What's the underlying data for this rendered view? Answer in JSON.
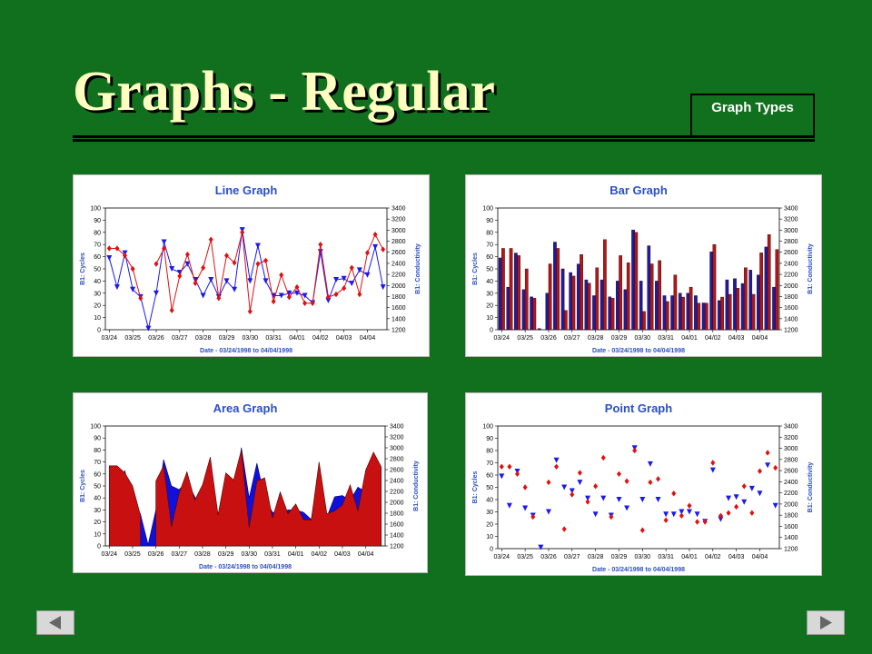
{
  "title": "Graphs - Regular",
  "button": "Graph Types",
  "chart_data": [
    {
      "type": "line",
      "title": "Line Graph",
      "xlabel": "Date - 03/24/1998 to 04/04/1998",
      "ylabel": "B1: Cycles",
      "y2label": "B1: Conductivity",
      "categories": [
        "03/24",
        null,
        null,
        "03/25",
        null,
        null,
        "03/26",
        null,
        null,
        "03/27",
        null,
        null,
        "03/28",
        null,
        null,
        "03/29",
        null,
        null,
        "03/30",
        null,
        null,
        "03/31",
        null,
        null,
        "04/01",
        null,
        null,
        "04/02",
        null,
        null,
        "04/03",
        null,
        null,
        "04/04",
        null,
        null
      ],
      "ylim": [
        0,
        100
      ],
      "yticks": [
        0,
        10,
        20,
        30,
        40,
        50,
        60,
        70,
        80,
        90,
        100
      ],
      "y2lim": [
        1200,
        3400
      ],
      "y2ticks": [
        1200,
        1400,
        1600,
        1800,
        2000,
        2200,
        2400,
        2600,
        2800,
        3000,
        3200,
        3400
      ],
      "series": [
        {
          "color": "#1a1aee",
          "values": [
            59,
            35,
            63,
            33,
            27,
            1,
            30,
            72,
            50,
            47,
            54,
            41,
            28,
            41,
            27,
            40,
            33,
            82,
            40,
            69,
            40,
            28,
            28,
            30,
            30,
            28,
            22,
            64,
            24,
            41,
            42,
            38,
            49,
            45,
            68,
            35
          ]
        },
        {
          "color": "#e01010",
          "axis": "y2",
          "values": [
            2670,
            2670,
            2540,
            2300,
            1770,
            null,
            2390,
            2670,
            1550,
            2170,
            2560,
            2040,
            2320,
            2830,
            1770,
            2540,
            2410,
            2960,
            1530,
            2390,
            2450,
            1710,
            2190,
            1790,
            1970,
            1680,
            1680,
            2740,
            1790,
            1840,
            1950,
            2320,
            1840,
            2590,
            2920,
            2650
          ]
        }
      ]
    },
    {
      "type": "bar",
      "title": "Bar Graph",
      "xlabel": "Date - 03/24/1998 to 04/04/1998",
      "ylabel": "B1: Cycles",
      "y2label": "B1: Conductivity",
      "categories": [
        "03/24",
        null,
        null,
        "03/25",
        null,
        null,
        "03/26",
        null,
        null,
        "03/27",
        null,
        null,
        "03/28",
        null,
        null,
        "03/29",
        null,
        null,
        "03/30",
        null,
        null,
        "03/31",
        null,
        null,
        "04/01",
        null,
        null,
        "04/02",
        null,
        null,
        "04/03",
        null,
        null,
        "04/04",
        null,
        null
      ],
      "ylim": [
        0,
        100
      ],
      "yticks": [
        0,
        10,
        20,
        30,
        40,
        50,
        60,
        70,
        80,
        90,
        100
      ],
      "y2lim": [
        1200,
        3400
      ],
      "y2ticks": [
        1200,
        1400,
        1600,
        1800,
        2000,
        2200,
        2400,
        2600,
        2800,
        3000,
        3200,
        3400
      ],
      "series": [
        {
          "color": "#1c1ca0",
          "values": [
            59,
            35,
            63,
            33,
            27,
            1,
            30,
            72,
            50,
            47,
            54,
            41,
            28,
            41,
            27,
            40,
            33,
            82,
            40,
            69,
            40,
            28,
            28,
            30,
            30,
            28,
            22,
            64,
            24,
            41,
            42,
            38,
            49,
            45,
            68,
            35
          ]
        },
        {
          "color": "#b01818",
          "axis": "y2",
          "values": [
            2670,
            2670,
            2540,
            2300,
            1770,
            null,
            2390,
            2670,
            1550,
            2170,
            2560,
            2040,
            2320,
            2830,
            1770,
            2540,
            2410,
            2960,
            1530,
            2390,
            2450,
            1710,
            2190,
            1790,
            1970,
            1680,
            1680,
            2740,
            1790,
            1840,
            1950,
            2320,
            1840,
            2590,
            2920,
            2650
          ]
        }
      ]
    },
    {
      "type": "area",
      "title": "Area Graph",
      "xlabel": "Date - 03/24/1998 to 04/04/1998",
      "ylabel": "B1: Cycles",
      "y2label": "B1: Conductivity",
      "categories": [
        "03/24",
        null,
        null,
        "03/25",
        null,
        null,
        "03/26",
        null,
        null,
        "03/27",
        null,
        null,
        "03/28",
        null,
        null,
        "03/29",
        null,
        null,
        "03/30",
        null,
        null,
        "03/31",
        null,
        null,
        "04/01",
        null,
        null,
        "04/02",
        null,
        null,
        "04/03",
        null,
        null,
        "04/04",
        null,
        null
      ],
      "ylim": [
        0,
        100
      ],
      "yticks": [
        0,
        10,
        20,
        30,
        40,
        50,
        60,
        70,
        80,
        90,
        100
      ],
      "y2lim": [
        1200,
        3400
      ],
      "y2ticks": [
        1200,
        1400,
        1600,
        1800,
        2000,
        2200,
        2400,
        2600,
        2800,
        3000,
        3200,
        3400
      ],
      "series": [
        {
          "color": "#1010dd",
          "values": [
            59,
            35,
            63,
            33,
            27,
            1,
            30,
            72,
            50,
            47,
            54,
            41,
            28,
            41,
            27,
            40,
            33,
            82,
            40,
            69,
            40,
            28,
            28,
            30,
            30,
            28,
            22,
            64,
            24,
            41,
            42,
            38,
            49,
            45,
            68,
            35
          ]
        },
        {
          "color": "#c81010",
          "axis": "y2",
          "values": [
            2670,
            2670,
            2540,
            2300,
            1770,
            null,
            2390,
            2670,
            1550,
            2170,
            2560,
            2040,
            2320,
            2830,
            1770,
            2540,
            2410,
            2960,
            1530,
            2390,
            2450,
            1710,
            2190,
            1790,
            1970,
            1680,
            1680,
            2740,
            1790,
            1840,
            1950,
            2320,
            1840,
            2590,
            2920,
            2650
          ]
        }
      ]
    },
    {
      "type": "point",
      "title": "Point Graph",
      "xlabel": "Date - 03/24/1998 to 04/04/1998",
      "ylabel": "B1: Cycles",
      "y2label": "B1: Conductivity",
      "categories": [
        "03/24",
        null,
        null,
        "03/25",
        null,
        null,
        "03/26",
        null,
        null,
        "03/27",
        null,
        null,
        "03/28",
        null,
        null,
        "03/29",
        null,
        null,
        "03/30",
        null,
        null,
        "03/31",
        null,
        null,
        "04/01",
        null,
        null,
        "04/02",
        null,
        null,
        "04/03",
        null,
        null,
        "04/04",
        null,
        null
      ],
      "ylim": [
        0,
        100
      ],
      "yticks": [
        0,
        10,
        20,
        30,
        40,
        50,
        60,
        70,
        80,
        90,
        100
      ],
      "y2lim": [
        1200,
        3400
      ],
      "y2ticks": [
        1200,
        1400,
        1600,
        1800,
        2000,
        2200,
        2400,
        2600,
        2800,
        3000,
        3200,
        3400
      ],
      "series": [
        {
          "color": "#1a1aee",
          "values": [
            59,
            35,
            63,
            33,
            27,
            1,
            30,
            72,
            50,
            47,
            54,
            41,
            28,
            41,
            27,
            40,
            33,
            82,
            40,
            69,
            40,
            28,
            28,
            30,
            30,
            28,
            22,
            64,
            24,
            41,
            42,
            38,
            49,
            45,
            68,
            35
          ]
        },
        {
          "color": "#e01010",
          "axis": "y2",
          "values": [
            2670,
            2670,
            2540,
            2300,
            1770,
            null,
            2390,
            2670,
            1550,
            2170,
            2560,
            2040,
            2320,
            2830,
            1770,
            2540,
            2410,
            2960,
            1530,
            2390,
            2450,
            1710,
            2190,
            1790,
            1970,
            1680,
            1680,
            2740,
            1790,
            1840,
            1950,
            2320,
            1840,
            2590,
            2920,
            2650
          ]
        }
      ]
    }
  ]
}
